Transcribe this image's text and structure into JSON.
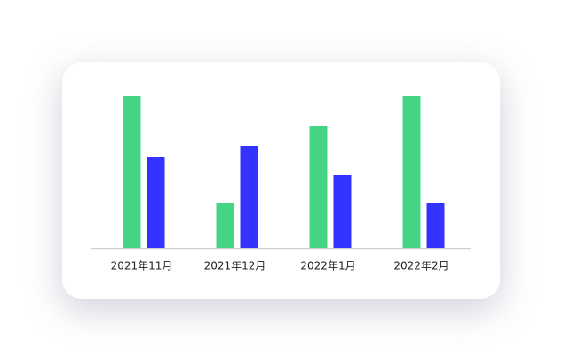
{
  "chart_data": {
    "type": "bar",
    "categories": [
      "2021年11月",
      "2021年12月",
      "2022年1月",
      "2022年2月"
    ],
    "series": [
      {
        "color": "#45d483",
        "values": [
          172,
          51,
          138,
          172
        ]
      },
      {
        "color": "#3333ff",
        "values": [
          103,
          116,
          83,
          51
        ]
      }
    ],
    "ylim": [
      0,
      172
    ]
  }
}
